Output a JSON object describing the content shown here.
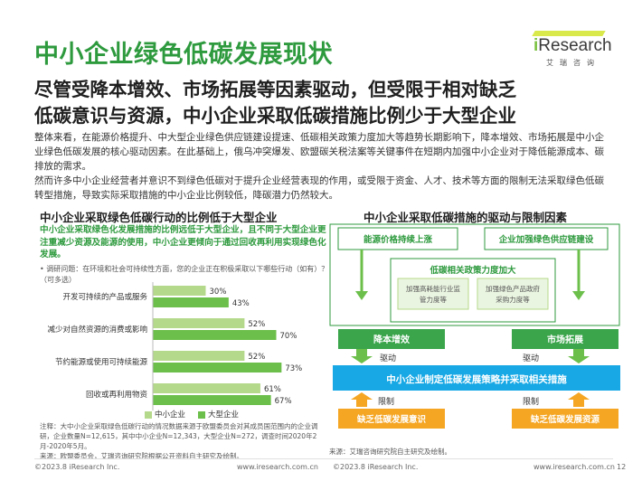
{
  "title": "中小企业绿色低碳发展现状",
  "logo": {
    "brand_i": "i",
    "brand_rest": "Research",
    "sub": "艾瑞咨询"
  },
  "headline": [
    "尽管受降本增效、市场拓展等因素驱动，但受限于相对缺乏",
    "低碳意识与资源，中小企业采取低碳措施比例少于大型企业"
  ],
  "body": [
    "整体来看，在能源价格提升、中大型企业绿色供应链建设提速、低碳相关政策力度加大等趋势长期影响下，降本增效、市场拓展是中小企业绿色低碳发展的核心驱动因素。在此基础上，俄乌冲突爆发、欧盟碳关税法案等关键事件在短期内加强中小企业对于降低能源成本、碳排放的需求。",
    "然而许多中小企业经营者并意识不到绿色低碳对于提升企业经营表现的作用，或受限于资金、人才、技术等方面的限制无法采取绿色低碳转型措施，导致实际采取措施的中小企业比例较低，降碳潜力仍然较大。"
  ],
  "left": {
    "title": "中小企业采取绿色低碳行动的比例低于大型企业",
    "desc": "中小企业采取绿色化发展措施的比例远低于大型企业，且不同于大型企业更注重减少资源及能源的使用，中小企业更倾向于通过回收再利用实现绿色化发展。",
    "survey": "•   调研问题：在环境和社会可持续性方面，您的企业正在积极采取以下哪些行动（如有）？（可多选）",
    "legend": [
      "中小企业",
      "大型企业"
    ],
    "note": "注释：大中小企业采取绿色低碳行动的情况数据来源于欧盟委员会对其成员国范围内的企业调研，企业数量N=12,615，其中中小企业N=12,343，大型企业N=272，调查时间2020年2月-2020年5月。\n来源：欧盟委员会，艾瑞咨询研究院根据公开资料自主研究及绘制。"
  },
  "chart_data": {
    "type": "bar",
    "orientation": "horizontal",
    "categories": [
      "开发可持续的产品或服务",
      "减少对自然资源的消费或影响",
      "节约能源或使用可持续能源",
      "回收或再利用物资"
    ],
    "series": [
      {
        "name": "中小企业",
        "values": [
          30,
          52,
          52,
          61
        ],
        "labels": [
          "30%",
          "52%",
          "52%",
          "61%"
        ],
        "color": "#b5d98a"
      },
      {
        "name": "大型企业",
        "values": [
          43,
          70,
          73,
          67
        ],
        "labels": [
          "43%",
          "70%",
          "73%",
          "67%"
        ],
        "color": "#6cbf4a"
      }
    ],
    "xlim": [
      0,
      100
    ]
  },
  "right": {
    "title": "中小企业采取低碳措施的驱动与限制因素",
    "box_energy": "能源价格持续上涨",
    "box_supply": "企业加强绿色供应链建设",
    "box_policy": "低碳相关政策力度加大",
    "box_policy_a": "加强高耗能行业监管力度等",
    "box_policy_b": "加强绿色产品政府采购力度等",
    "box_cost": "降本增效",
    "box_market": "市场拓展",
    "label_drive_left": "驱动",
    "label_drive_right": "驱动",
    "box_center": "中小企业制定低碳发展策略并采取相关措施",
    "label_limit_left": "限制",
    "label_limit_right": "限制",
    "box_awareness": "缺乏低碳发展意识",
    "box_resources": "缺乏低碳发展资源",
    "source": "来源：艾瑞咨询研究院自主研究及绘制。"
  },
  "footer": {
    "left_copy": "©2023.8 iResearch Inc.",
    "left_url": "www.iresearch.com.cn",
    "right_copy": "©2023.8 iResearch Inc.",
    "right_url": "www.iresearch.com.cn",
    "page": "12"
  },
  "colors": {
    "green": "#2e9a3e",
    "light_green": "#b5d98a",
    "mid_green": "#6cbf4a",
    "blue": "#17a8e5",
    "orange": "#f5a623"
  }
}
